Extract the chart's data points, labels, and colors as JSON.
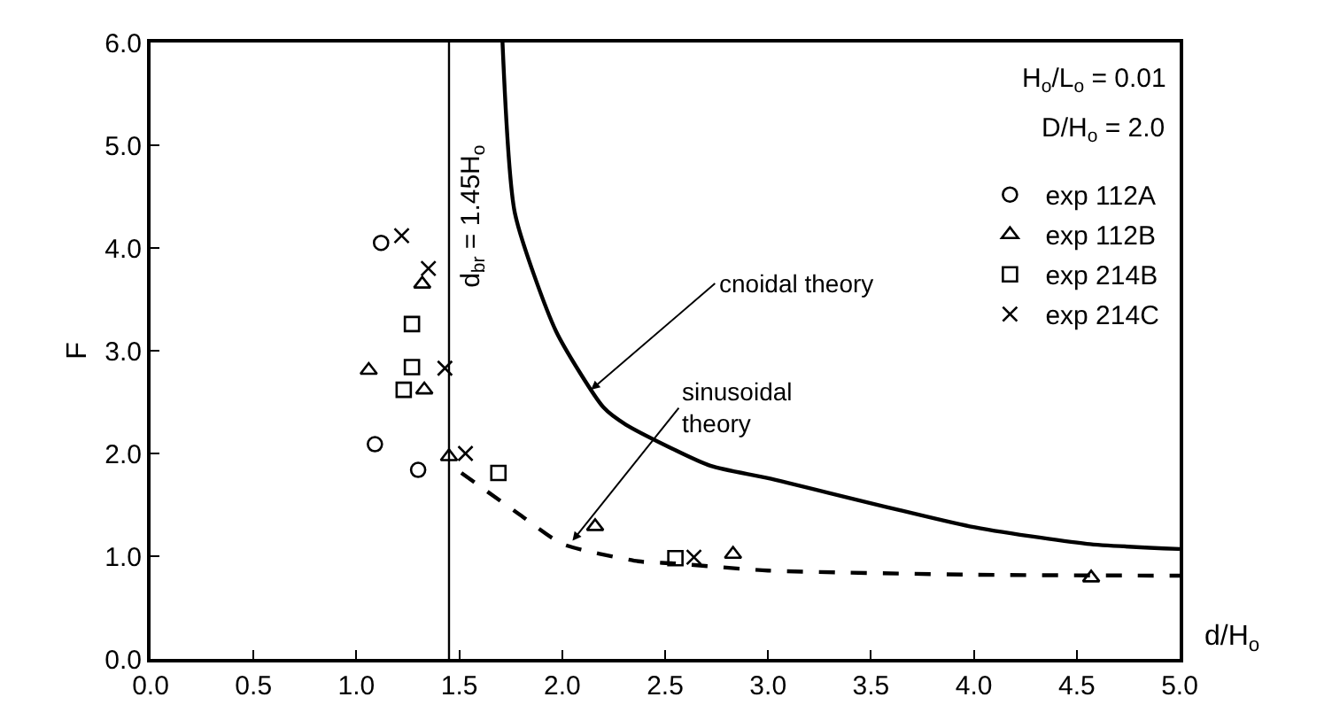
{
  "chart_data": {
    "type": "scatter",
    "xlabel": "d/H$_{o}$",
    "ylabel": "F",
    "xlim": [
      0,
      5
    ],
    "ylim": [
      0,
      6
    ],
    "xticks": [
      {
        "value": 0,
        "label": "0.0"
      },
      0.5,
      {
        "value": 1,
        "label": "1.0"
      },
      1.5,
      {
        "value": 2,
        "label": "2.0"
      },
      2.5,
      {
        "value": 3,
        "label": "3.0"
      },
      3.5,
      {
        "value": 4,
        "label": "4.0"
      },
      4.5,
      {
        "value": 5,
        "label": "5.0"
      }
    ],
    "yticks": [
      {
        "value": 0,
        "label": "0.0"
      },
      {
        "value": 1,
        "label": "1.0"
      },
      {
        "value": 2,
        "label": "2.0"
      },
      {
        "value": 3,
        "label": "3.0"
      },
      {
        "value": 4,
        "label": "4.0"
      },
      {
        "value": 5,
        "label": "5.0"
      },
      {
        "value": 6,
        "label": "6.0"
      }
    ],
    "legend": "top right",
    "series": [
      {
        "name": "exp 112A",
        "color": "#000000",
        "marker": "circle",
        "x": [
          1.09,
          1.3,
          1.12
        ],
        "values": [
          2.09,
          1.84,
          4.05
        ]
      },
      {
        "name": "exp 112B",
        "color": "#000000",
        "marker": "triangle",
        "x": [
          1.06,
          1.33,
          1.32,
          1.45,
          2.16,
          2.83,
          4.57
        ],
        "values": [
          2.81,
          2.62,
          3.65,
          1.97,
          1.29,
          1.02,
          0.79
        ]
      },
      {
        "name": "exp 214B",
        "color": "#000000",
        "marker": "square",
        "x": [
          1.27,
          1.27,
          1.23,
          1.69,
          2.55
        ],
        "values": [
          3.26,
          2.84,
          2.62,
          1.81,
          0.98
        ]
      },
      {
        "name": "exp 214C",
        "color": "#000000",
        "marker": "cross",
        "x": [
          1.22,
          1.35,
          1.43,
          1.53,
          2.64
        ],
        "values": [
          4.12,
          3.8,
          2.83,
          2.0,
          0.99
        ]
      },
      {
        "type": "line",
        "color": "#000000",
        "line_style": "solid",
        "x": [
          1.71,
          1.77,
          1.97,
          2.2,
          2.31,
          2.72,
          3.0,
          3.98,
          4.55,
          5.0
        ],
        "values": [
          6.0,
          4.34,
          3.19,
          2.45,
          2.28,
          1.88,
          1.76,
          1.29,
          1.12,
          1.07
        ]
      },
      {
        "type": "line",
        "color": "#000000",
        "line_style": "dashed",
        "x": [
          1.51,
          1.79,
          2.0,
          2.37,
          2.54,
          3.0,
          4.0,
          5.0
        ],
        "values": [
          1.81,
          1.41,
          1.12,
          0.95,
          0.93,
          0.86,
          0.82,
          0.81
        ]
      }
    ],
    "ref_lines": [
      {
        "axis": "x",
        "value": 1.45,
        "label": "d$_{br}$ = 1.45H$_{o}$",
        "color": "#000000",
        "line_style": "solid"
      }
    ],
    "annotations": [
      {
        "text": "cnoidal theory",
        "x": 2.14,
        "y": 2.62
      },
      {
        "text": "sinusoidal\ntheory",
        "x": 2.05,
        "y": 1.15
      },
      "H$_{o}$/L$_{o}$ = 0.01",
      "D/H$_{o}$ = 2.0"
    ]
  }
}
